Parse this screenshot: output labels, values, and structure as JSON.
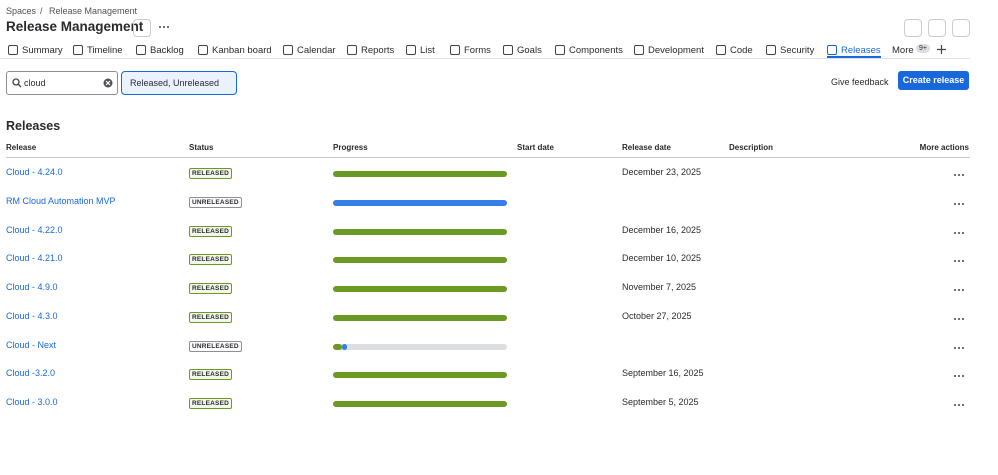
{
  "breadcrumb": {
    "items": [
      "Spaces",
      "Release Management"
    ],
    "separator": "/"
  },
  "header": {
    "title": "Release Management"
  },
  "tabs": {
    "items": [
      "Summary",
      "Timeline",
      "Backlog",
      "Kanban board",
      "Calendar",
      "Reports",
      "List",
      "Forms",
      "Goals",
      "Components",
      "Development",
      "Code",
      "Security",
      "Releases"
    ],
    "active": 13,
    "more": "More",
    "more_badge": "9+"
  },
  "toolbar": {
    "search": "cloud",
    "filter": "Released, Unreleased",
    "feedback": "Give feedback",
    "create": "Create release"
  },
  "section": {
    "title": "Releases"
  },
  "table": {
    "columns": [
      "Release",
      "Status",
      "Progress",
      "Start date",
      "Release date",
      "Description",
      "More actions"
    ],
    "rows": [
      {
        "name": "Cloud - 4.24.0",
        "status": "RELEASED",
        "release_date": "December 23, 2025",
        "progress": {
          "done": 100,
          "in_progress": 0
        }
      },
      {
        "name": "RM Cloud Automation MVP",
        "status": "UNRELEASED",
        "release_date": "",
        "progress": {
          "done": 0,
          "in_progress": 100
        }
      },
      {
        "name": "Cloud - 4.22.0",
        "status": "RELEASED",
        "release_date": "December 16, 2025",
        "progress": {
          "done": 100,
          "in_progress": 0
        }
      },
      {
        "name": "Cloud - 4.21.0",
        "status": "RELEASED",
        "release_date": "December 10, 2025",
        "progress": {
          "done": 100,
          "in_progress": 0
        }
      },
      {
        "name": "Cloud - 4.9.0",
        "status": "RELEASED",
        "release_date": "November 7, 2025",
        "progress": {
          "done": 100,
          "in_progress": 0
        }
      },
      {
        "name": "Cloud - 4.3.0",
        "status": "RELEASED",
        "release_date": "October 27, 2025",
        "progress": {
          "done": 100,
          "in_progress": 0
        }
      },
      {
        "name": "Cloud - Next",
        "status": "UNRELEASED",
        "release_date": "",
        "progress": {
          "done": 5,
          "in_progress": 3
        }
      },
      {
        "name": "Cloud -3.2.0",
        "status": "RELEASED",
        "release_date": "September 16, 2025",
        "progress": {
          "done": 100,
          "in_progress": 0
        }
      },
      {
        "name": "Cloud - 3.0.0",
        "status": "RELEASED",
        "release_date": "September 5, 2025",
        "progress": {
          "done": 100,
          "in_progress": 0
        }
      }
    ]
  }
}
